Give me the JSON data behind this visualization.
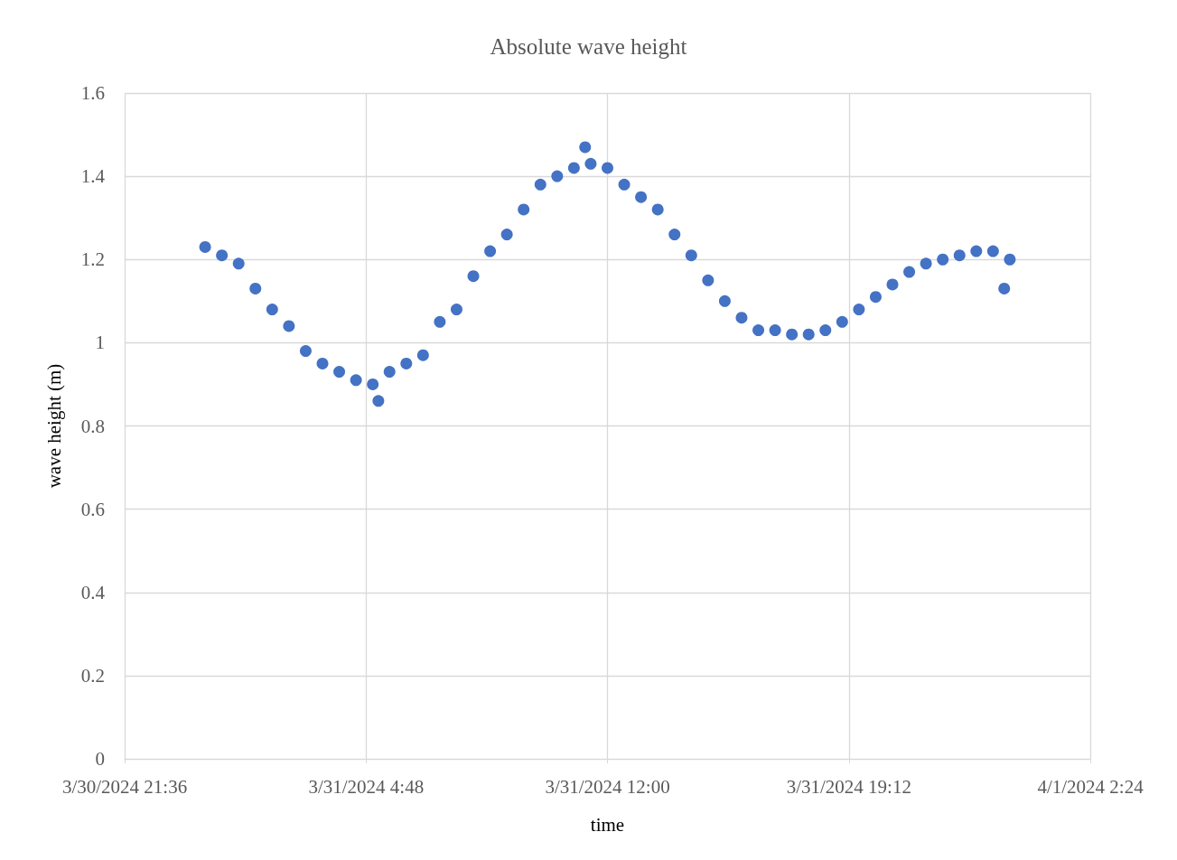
{
  "chart_data": {
    "type": "scatter",
    "title": "Absolute wave height",
    "xlabel": "time",
    "ylabel": "wave height (m)",
    "x": [
      "2024-03-31T00:00",
      "2024-03-31T00:30",
      "2024-03-31T01:00",
      "2024-03-31T01:30",
      "2024-03-31T02:00",
      "2024-03-31T02:30",
      "2024-03-31T03:00",
      "2024-03-31T03:30",
      "2024-03-31T04:00",
      "2024-03-31T04:30",
      "2024-03-31T05:00",
      "2024-03-31T05:10",
      "2024-03-31T05:30",
      "2024-03-31T06:00",
      "2024-03-31T06:30",
      "2024-03-31T07:00",
      "2024-03-31T07:30",
      "2024-03-31T08:00",
      "2024-03-31T08:30",
      "2024-03-31T09:00",
      "2024-03-31T09:30",
      "2024-03-31T10:00",
      "2024-03-31T10:30",
      "2024-03-31T11:00",
      "2024-03-31T11:20",
      "2024-03-31T11:30",
      "2024-03-31T12:00",
      "2024-03-31T12:30",
      "2024-03-31T13:00",
      "2024-03-31T13:30",
      "2024-03-31T14:00",
      "2024-03-31T14:30",
      "2024-03-31T15:00",
      "2024-03-31T15:30",
      "2024-03-31T16:00",
      "2024-03-31T16:30",
      "2024-03-31T17:00",
      "2024-03-31T17:30",
      "2024-03-31T18:00",
      "2024-03-31T18:30",
      "2024-03-31T19:00",
      "2024-03-31T19:30",
      "2024-03-31T20:00",
      "2024-03-31T20:30",
      "2024-03-31T21:00",
      "2024-03-31T21:30",
      "2024-03-31T22:00",
      "2024-03-31T22:30",
      "2024-03-31T23:00",
      "2024-03-31T23:30",
      "2024-03-31T23:50",
      "2024-04-01T00:00"
    ],
    "values": [
      1.23,
      1.21,
      1.19,
      1.13,
      1.08,
      1.04,
      0.98,
      0.95,
      0.93,
      0.91,
      0.9,
      0.86,
      0.93,
      0.95,
      0.97,
      1.05,
      1.08,
      1.16,
      1.22,
      1.26,
      1.32,
      1.38,
      1.4,
      1.42,
      1.47,
      1.43,
      1.42,
      1.38,
      1.35,
      1.32,
      1.26,
      1.21,
      1.15,
      1.1,
      1.06,
      1.03,
      1.03,
      1.02,
      1.02,
      1.03,
      1.05,
      1.08,
      1.11,
      1.14,
      1.17,
      1.19,
      1.2,
      1.21,
      1.22,
      1.22,
      1.13,
      1.2
    ],
    "color": "#4472c4",
    "marker": "circle",
    "xlim": [
      "2024-03-30T21:36",
      "2024-04-01T02:24"
    ],
    "xticks": [
      {
        "value": "2024-03-30T21:36",
        "label": "3/30/2024 21:36"
      },
      {
        "value": "2024-03-31T04:48",
        "label": "3/31/2024 4:48"
      },
      {
        "value": "2024-03-31T12:00",
        "label": "3/31/2024 12:00"
      },
      {
        "value": "2024-03-31T19:12",
        "label": "3/31/2024 19:12"
      },
      {
        "value": "2024-04-01T02:24",
        "label": "4/1/2024 2:24"
      }
    ],
    "ylim": [
      0,
      1.6
    ],
    "yticks": [
      0,
      0.2,
      0.4,
      0.6,
      0.8,
      1,
      1.2,
      1.4,
      1.6
    ],
    "grid": true
  }
}
